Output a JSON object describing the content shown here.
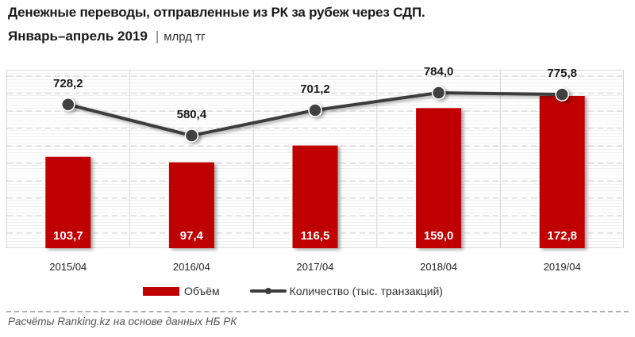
{
  "header": {
    "title_line1": "Денежные переводы, отправленные из РК за рубеж через СДП.",
    "title_line2": "Январь–апрель 2019",
    "separator": "|",
    "unit": "млрд тг"
  },
  "legend": {
    "bar_label": "Объём",
    "line_label": "Количество (тыс. транзакций)"
  },
  "footer": {
    "source": "Расчёты Ranking.kz на основе данных НБ РК"
  },
  "colors": {
    "bar": "#c00000",
    "line": "#3c3c3c",
    "marker": "#404040"
  },
  "chart_data": {
    "type": "bar+line",
    "title": "Денежные переводы, отправленные из РК за рубеж через СДП. Январь–апрель 2019 | млрд тг",
    "categories": [
      "2015/04",
      "2016/04",
      "2017/04",
      "2018/04",
      "2019/04"
    ],
    "series": [
      {
        "name": "Объём",
        "type": "bar",
        "axis": "primary",
        "values": [
          103.7,
          97.4,
          116.5,
          159.0,
          172.8
        ],
        "labels": [
          "103,7",
          "97,4",
          "116,5",
          "159,0",
          "172,8"
        ],
        "color": "#c00000"
      },
      {
        "name": "Количество (тыс. транзакций)",
        "type": "line",
        "axis": "secondary",
        "values": [
          728.2,
          580.4,
          701.2,
          784.0,
          775.8
        ],
        "labels": [
          "728,2",
          "580,4",
          "701,2",
          "784,0",
          "775,8"
        ],
        "color": "#3c3c3c"
      }
    ],
    "xlabel": "",
    "ylabel": "",
    "grid": true,
    "legend_position": "bottom"
  }
}
